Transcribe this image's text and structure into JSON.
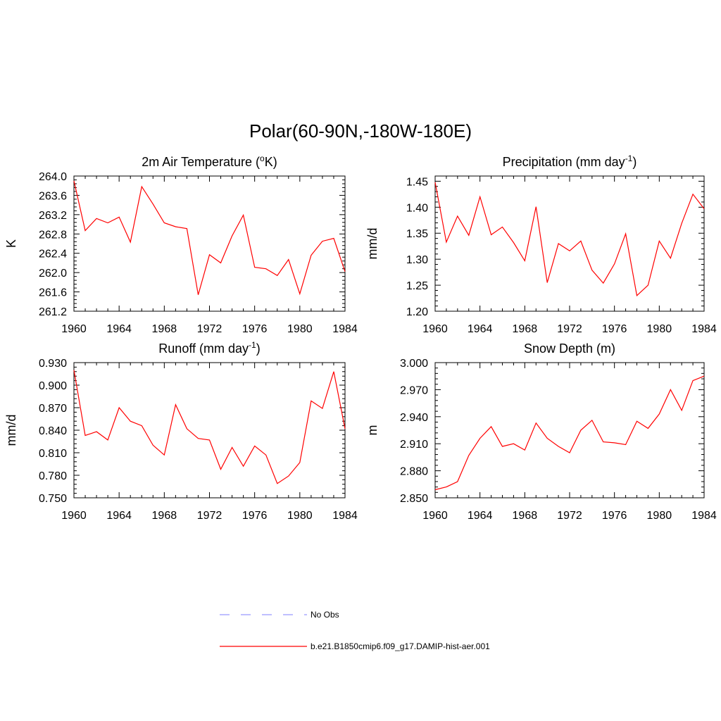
{
  "figure": {
    "title": "Polar(60-90N,-180W-180E)",
    "line_color": "#ff0000",
    "obs_color": "#9999ff"
  },
  "chart_data": [
    {
      "type": "line",
      "title_main": "2m Air Temperature (",
      "title_sup": "o",
      "title_after": "K)",
      "ylabel": "K",
      "xlim": [
        1960,
        1984
      ],
      "ylim": [
        261.2,
        264.0
      ],
      "x_ticks": [
        1960,
        1964,
        1968,
        1972,
        1976,
        1980,
        1984
      ],
      "y_ticks": [
        "261.2",
        "261.6",
        "262.0",
        "262.4",
        "262.8",
        "263.2",
        "263.6",
        "264.0"
      ],
      "grid": false,
      "series": [
        {
          "x": [
            1960,
            1961,
            1962,
            1963,
            1964,
            1965,
            1966,
            1967,
            1968,
            1969,
            1970,
            1971,
            1972,
            1973,
            1974,
            1975,
            1976,
            1977,
            1978,
            1979,
            1980,
            1981,
            1982,
            1983,
            1984
          ],
          "values": [
            263.9,
            262.87,
            263.12,
            263.03,
            263.15,
            262.63,
            263.78,
            263.42,
            263.03,
            262.95,
            262.91,
            261.54,
            262.37,
            262.2,
            262.76,
            263.19,
            262.11,
            262.08,
            261.94,
            262.27,
            261.56,
            262.36,
            262.65,
            262.71,
            262.02
          ]
        }
      ]
    },
    {
      "type": "line",
      "title_main": "Precipitation (mm day",
      "title_sup": "-1",
      "title_after": ")",
      "ylabel": "mm/d",
      "xlim": [
        1960,
        1984
      ],
      "ylim": [
        1.2,
        1.46
      ],
      "x_ticks": [
        1960,
        1964,
        1968,
        1972,
        1976,
        1980,
        1984
      ],
      "y_ticks": [
        "1.20",
        "1.25",
        "1.30",
        "1.35",
        "1.40",
        "1.45"
      ],
      "grid": false,
      "series": [
        {
          "x": [
            1960,
            1961,
            1962,
            1963,
            1964,
            1965,
            1966,
            1967,
            1968,
            1969,
            1970,
            1971,
            1972,
            1973,
            1974,
            1975,
            1976,
            1977,
            1978,
            1979,
            1980,
            1981,
            1982,
            1983,
            1984
          ],
          "values": [
            1.448,
            1.333,
            1.383,
            1.346,
            1.42,
            1.347,
            1.362,
            1.332,
            1.297,
            1.401,
            1.255,
            1.33,
            1.316,
            1.335,
            1.279,
            1.254,
            1.291,
            1.349,
            1.23,
            1.25,
            1.335,
            1.302,
            1.369,
            1.425,
            1.397
          ]
        }
      ]
    },
    {
      "type": "line",
      "title_main": "Runoff (mm day",
      "title_sup": "-1",
      "title_after": ")",
      "ylabel": "mm/d",
      "xlim": [
        1960,
        1984
      ],
      "ylim": [
        0.75,
        0.93
      ],
      "x_ticks": [
        1960,
        1964,
        1968,
        1972,
        1976,
        1980,
        1984
      ],
      "y_ticks": [
        "0.750",
        "0.780",
        "0.810",
        "0.840",
        "0.870",
        "0.900",
        "0.930"
      ],
      "grid": false,
      "series": [
        {
          "x": [
            1960,
            1961,
            1962,
            1963,
            1964,
            1965,
            1966,
            1967,
            1968,
            1969,
            1970,
            1971,
            1972,
            1973,
            1974,
            1975,
            1976,
            1977,
            1978,
            1979,
            1980,
            1981,
            1982,
            1983,
            1984
          ],
          "values": [
            0.92,
            0.833,
            0.838,
            0.827,
            0.87,
            0.852,
            0.846,
            0.82,
            0.807,
            0.874,
            0.842,
            0.829,
            0.827,
            0.788,
            0.817,
            0.792,
            0.819,
            0.807,
            0.769,
            0.779,
            0.797,
            0.879,
            0.869,
            0.918,
            0.842
          ]
        }
      ]
    },
    {
      "type": "line",
      "title_main": "Snow Depth (m)",
      "title_sup": "",
      "title_after": "",
      "ylabel": "m",
      "xlim": [
        1960,
        1984
      ],
      "ylim": [
        2.85,
        3.0
      ],
      "x_ticks": [
        1960,
        1964,
        1968,
        1972,
        1976,
        1980,
        1984
      ],
      "y_ticks": [
        "2.850",
        "2.880",
        "2.910",
        "2.940",
        "2.970",
        "3.000"
      ],
      "grid": false,
      "series": [
        {
          "x": [
            1960,
            1961,
            1962,
            1963,
            1964,
            1965,
            1966,
            1967,
            1968,
            1969,
            1970,
            1971,
            1972,
            1973,
            1974,
            1975,
            1976,
            1977,
            1978,
            1979,
            1980,
            1981,
            1982,
            1983,
            1984
          ],
          "values": [
            2.859,
            2.862,
            2.868,
            2.897,
            2.916,
            2.929,
            2.907,
            2.91,
            2.903,
            2.933,
            2.916,
            2.907,
            2.9,
            2.925,
            2.936,
            2.912,
            2.911,
            2.909,
            2.935,
            2.927,
            2.943,
            2.97,
            2.947,
            2.98,
            2.985
          ]
        }
      ]
    }
  ],
  "legend": [
    {
      "label": "No Obs",
      "style": "dashed",
      "color": "#9999ff"
    },
    {
      "label": "b.e21.B1850cmip6.f09_g17.DAMIP-hist-aer.001",
      "style": "solid",
      "color": "#ff0000"
    }
  ]
}
